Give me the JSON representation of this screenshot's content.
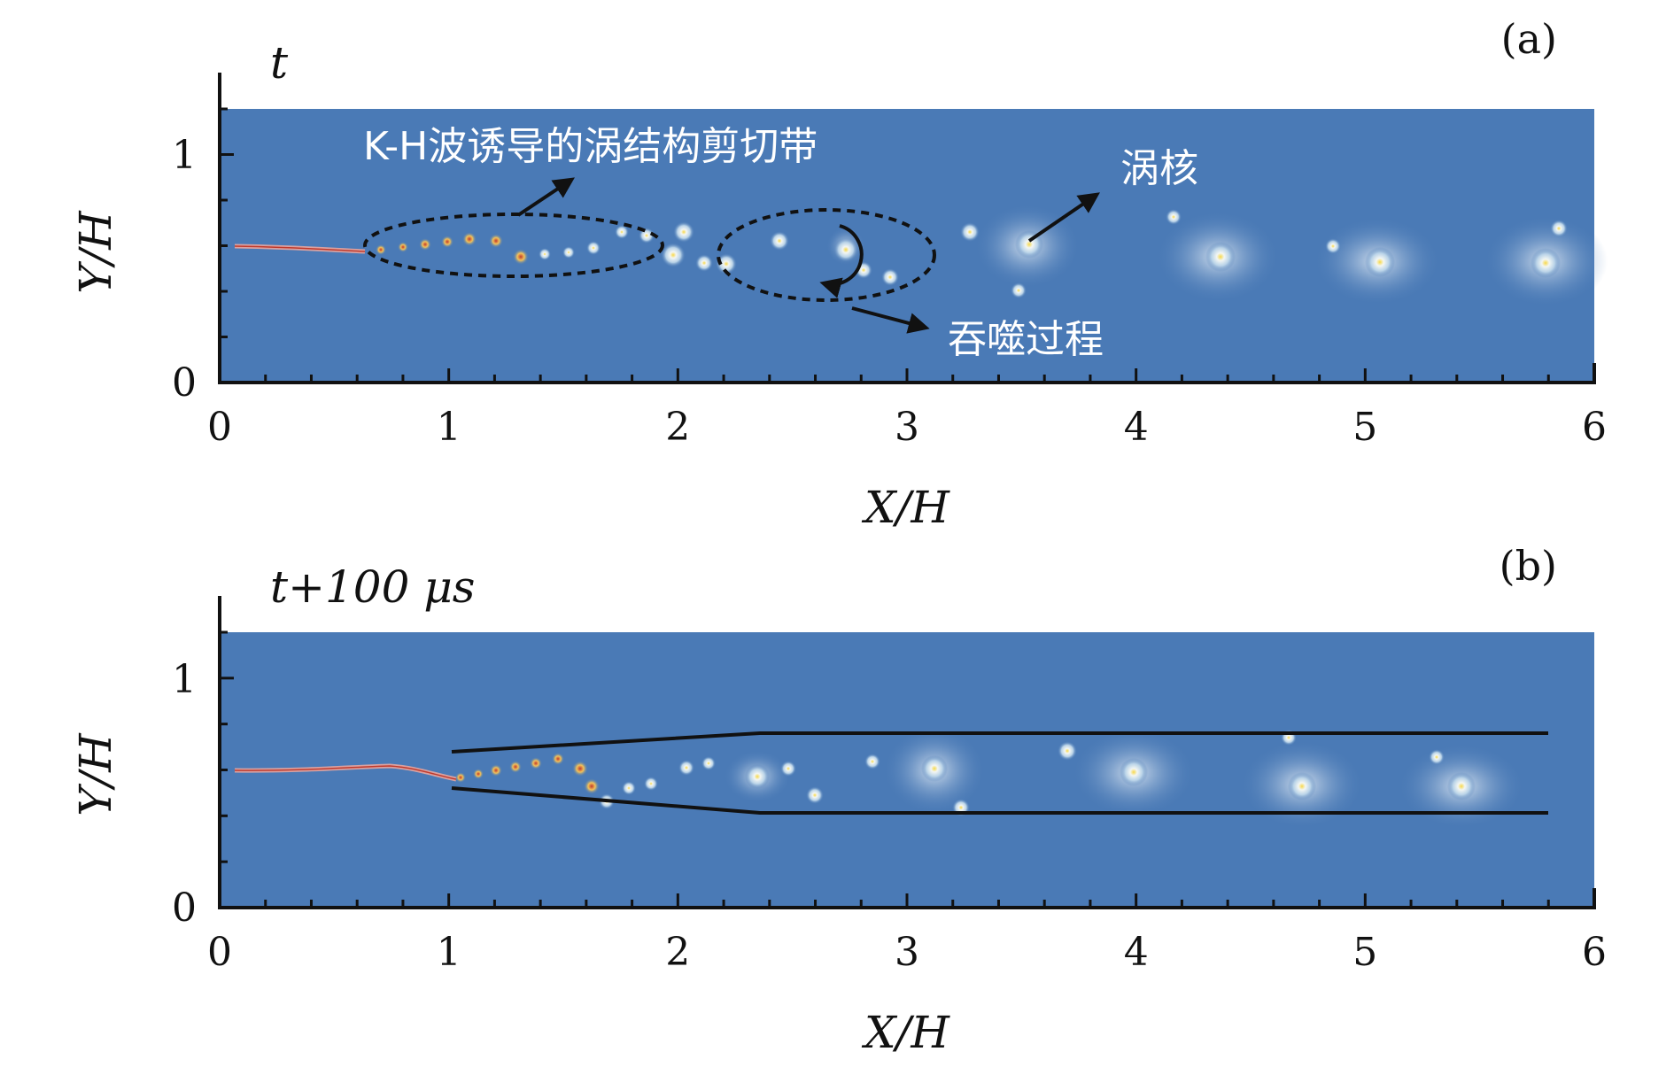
{
  "figure": {
    "panels": [
      {
        "tag": "(a)",
        "time_label": "t",
        "x_label": "X/H",
        "y_label": "Y/H",
        "x_ticks": [
          "0",
          "1",
          "2",
          "3",
          "4",
          "5",
          "6"
        ],
        "y_ticks": [
          "0",
          "1"
        ],
        "annotations": {
          "kh": "K-H波诱导的涡结构剪切带",
          "core": "涡核",
          "engulf": "吞噬过程"
        }
      },
      {
        "tag": "(b)",
        "time_label": "t+100 μs",
        "x_label": "X/H",
        "y_label": "Y/H",
        "x_ticks": [
          "0",
          "1",
          "2",
          "3",
          "4",
          "5",
          "6"
        ],
        "y_ticks": [
          "0",
          "1"
        ]
      }
    ],
    "colors": {
      "field_background": "#4a7ab6",
      "vortex_light": "#dbe8f2",
      "vortex_core_hot": "#f4d35e",
      "jet_hot": "#c0392b",
      "outline": "#111111"
    }
  }
}
